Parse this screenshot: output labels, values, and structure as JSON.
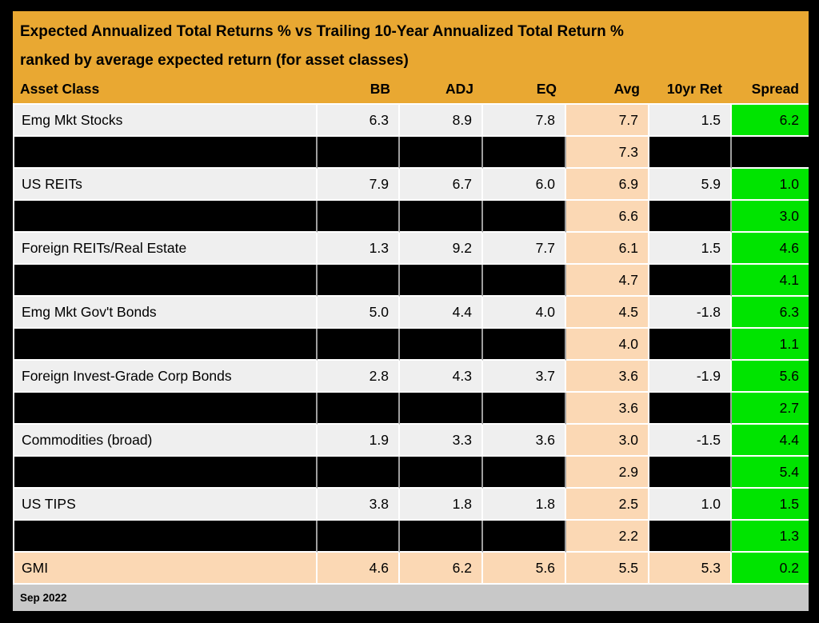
{
  "header": {
    "title_line1": "Expected Annualized Total Returns % vs Trailing 10-Year Annualized Total Return %",
    "title_line2": "ranked by average expected return (for asset classes)"
  },
  "footer": {
    "note": "Sep 2022"
  },
  "colors": {
    "header_gold": "#e9a832",
    "row_light_gray": "#efefef",
    "redacted_black": "#000000",
    "avg_column_peach": "#fbd8b4",
    "spread_column_green": "#00e400",
    "footer_gray": "#c8c8c8",
    "frame_black": "#000000"
  },
  "chart_data": {
    "type": "table",
    "title": "Expected Annualized Total Returns % vs Trailing 10-Year Annualized Total Return %",
    "subtitle": "ranked by average expected return (for asset classes)",
    "columns": [
      "Asset Class",
      "BB",
      "ADJ",
      "EQ",
      "Avg",
      "10yr Ret",
      "Spread"
    ],
    "rows": [
      {
        "asset_class": "Emg Mkt Stocks",
        "bb": 6.3,
        "adj": 8.9,
        "eq": 7.8,
        "avg": 7.7,
        "ret_10yr": 1.5,
        "spread": 6.2,
        "redacted": false,
        "highlight": false
      },
      {
        "asset_class": null,
        "bb": null,
        "adj": null,
        "eq": null,
        "avg": 7.3,
        "ret_10yr": null,
        "spread": null,
        "redacted": true,
        "highlight": false
      },
      {
        "asset_class": "US REITs",
        "bb": 7.9,
        "adj": 6.7,
        "eq": 6.0,
        "avg": 6.9,
        "ret_10yr": 5.9,
        "spread": 1.0,
        "redacted": false,
        "highlight": false
      },
      {
        "asset_class": null,
        "bb": null,
        "adj": null,
        "eq": null,
        "avg": 6.6,
        "ret_10yr": null,
        "spread": 3.0,
        "redacted": true,
        "highlight": false
      },
      {
        "asset_class": "Foreign REITs/Real Estate",
        "bb": 1.3,
        "adj": 9.2,
        "eq": 7.7,
        "avg": 6.1,
        "ret_10yr": 1.5,
        "spread": 4.6,
        "redacted": false,
        "highlight": false
      },
      {
        "asset_class": null,
        "bb": null,
        "adj": null,
        "eq": null,
        "avg": 4.7,
        "ret_10yr": null,
        "spread": 4.1,
        "redacted": true,
        "highlight": false
      },
      {
        "asset_class": "Emg Mkt Gov't Bonds",
        "bb": 5.0,
        "adj": 4.4,
        "eq": 4.0,
        "avg": 4.5,
        "ret_10yr": -1.8,
        "spread": 6.3,
        "redacted": false,
        "highlight": false
      },
      {
        "asset_class": null,
        "bb": null,
        "adj": null,
        "eq": null,
        "avg": 4.0,
        "ret_10yr": null,
        "spread": 1.1,
        "redacted": true,
        "highlight": false
      },
      {
        "asset_class": "Foreign Invest-Grade Corp Bonds",
        "bb": 2.8,
        "adj": 4.3,
        "eq": 3.7,
        "avg": 3.6,
        "ret_10yr": -1.9,
        "spread": 5.6,
        "redacted": false,
        "highlight": false
      },
      {
        "asset_class": null,
        "bb": null,
        "adj": null,
        "eq": null,
        "avg": 3.6,
        "ret_10yr": null,
        "spread": 2.7,
        "redacted": true,
        "highlight": false
      },
      {
        "asset_class": "Commodities (broad)",
        "bb": 1.9,
        "adj": 3.3,
        "eq": 3.6,
        "avg": 3.0,
        "ret_10yr": -1.5,
        "spread": 4.4,
        "redacted": false,
        "highlight": false
      },
      {
        "asset_class": null,
        "bb": null,
        "adj": null,
        "eq": null,
        "avg": 2.9,
        "ret_10yr": null,
        "spread": 5.4,
        "redacted": true,
        "highlight": false
      },
      {
        "asset_class": "US TIPS",
        "bb": 3.8,
        "adj": 1.8,
        "eq": 1.8,
        "avg": 2.5,
        "ret_10yr": 1.0,
        "spread": 1.5,
        "redacted": false,
        "highlight": false
      },
      {
        "asset_class": null,
        "bb": null,
        "adj": null,
        "eq": null,
        "avg": 2.2,
        "ret_10yr": null,
        "spread": 1.3,
        "redacted": true,
        "highlight": false
      },
      {
        "asset_class": "GMI",
        "bb": 4.6,
        "adj": 6.2,
        "eq": 5.6,
        "avg": 5.5,
        "ret_10yr": 5.3,
        "spread": 0.2,
        "redacted": false,
        "highlight": true
      }
    ],
    "footnote": "Sep 2022"
  }
}
